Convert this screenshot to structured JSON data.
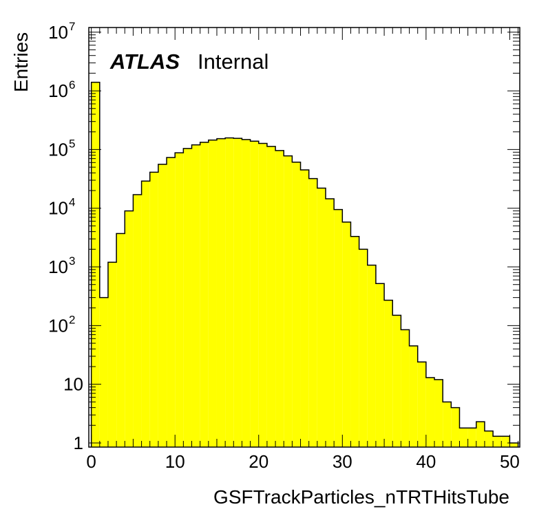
{
  "chart_data": {
    "type": "bar",
    "style": "step-histogram",
    "fill_color": "#ffff00",
    "line_color": "#000000",
    "xlabel": "GSFTrackParticles_nTRTHitsTube",
    "ylabel": "Entries",
    "label_atlas": "ATLAS",
    "label_status": "Internal",
    "xlim": [
      -0.3,
      51.2
    ],
    "ylim": [
      0.85,
      12000000
    ],
    "yscale": "log",
    "x_ticks": [
      {
        "value": 0,
        "label": "0"
      },
      {
        "value": 10,
        "label": "10"
      },
      {
        "value": 20,
        "label": "20"
      },
      {
        "value": 30,
        "label": "30"
      },
      {
        "value": 40,
        "label": "40"
      },
      {
        "value": 50,
        "label": "50"
      }
    ],
    "y_ticks": [
      {
        "value": 1,
        "label": "1",
        "exp": ""
      },
      {
        "value": 10,
        "label": "10",
        "exp": ""
      },
      {
        "value": 100,
        "label": "10",
        "exp": "2"
      },
      {
        "value": 1000,
        "label": "10",
        "exp": "3"
      },
      {
        "value": 10000,
        "label": "10",
        "exp": "4"
      },
      {
        "value": 100000,
        "label": "10",
        "exp": "5"
      },
      {
        "value": 1000000,
        "label": "10",
        "exp": "6"
      },
      {
        "value": 10000000,
        "label": "10",
        "exp": "7"
      }
    ],
    "bin_edges_start": 0,
    "bin_width": 1,
    "values": [
      1400000,
      300,
      1200,
      3700,
      9000,
      17000,
      29000,
      41000,
      56000,
      73000,
      88000,
      104000,
      120000,
      133000,
      145000,
      153000,
      158000,
      155000,
      148000,
      139000,
      127000,
      113000,
      96000,
      78000,
      61000,
      45000,
      32000,
      22000,
      14500,
      9500,
      5800,
      3300,
      2000,
      1070,
      520,
      270,
      150,
      85,
      45,
      24,
      13,
      12,
      5,
      4,
      1.8,
      1.8,
      2.3,
      1.6,
      1.3,
      1.3,
      1.0
    ]
  }
}
